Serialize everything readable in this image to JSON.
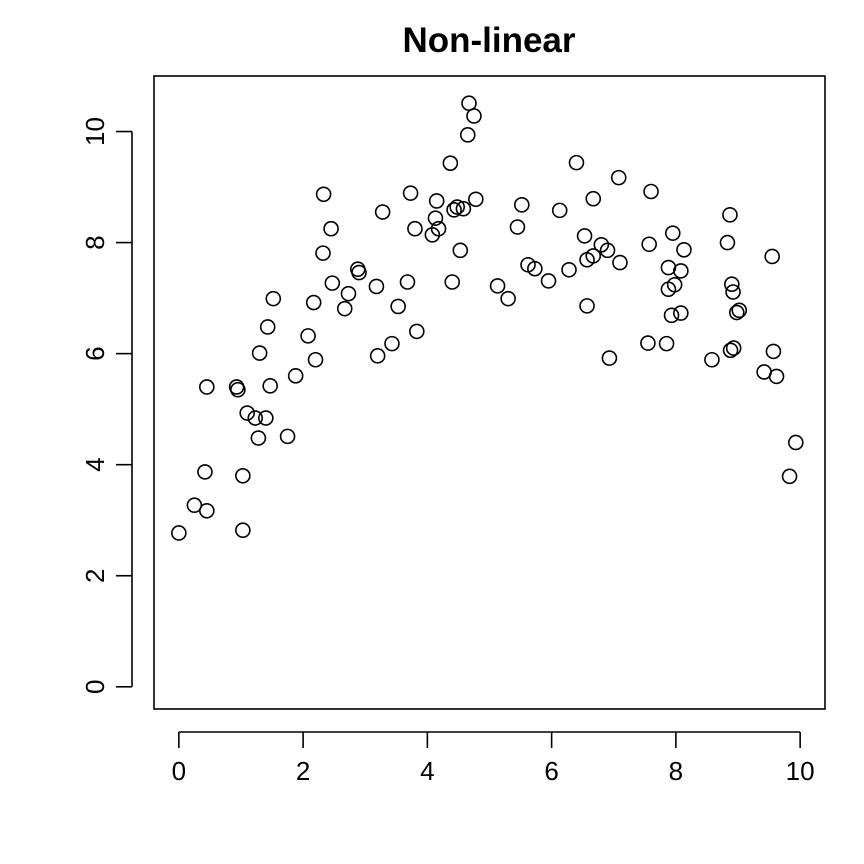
{
  "chart_data": {
    "type": "scatter",
    "title": "Non-linear",
    "xlabel": "",
    "ylabel": "",
    "xlim": [
      -0.4,
      10.4
    ],
    "ylim": [
      -0.4,
      11.0
    ],
    "x_ticks": [
      0,
      2,
      4,
      6,
      8,
      10
    ],
    "y_ticks": [
      0,
      2,
      4,
      6,
      8,
      10
    ],
    "x_tick_labels": [
      "0",
      "2",
      "4",
      "6",
      "8",
      "10"
    ],
    "y_tick_labels": [
      "0",
      "2",
      "4",
      "6",
      "8",
      "10"
    ],
    "grid": false,
    "marker": "open-circle",
    "points": [
      {
        "x": 0.0,
        "y": 2.77
      },
      {
        "x": 0.25,
        "y": 3.27
      },
      {
        "x": 0.42,
        "y": 3.87
      },
      {
        "x": 0.45,
        "y": 3.17
      },
      {
        "x": 0.45,
        "y": 5.4
      },
      {
        "x": 0.93,
        "y": 5.4
      },
      {
        "x": 0.95,
        "y": 5.35
      },
      {
        "x": 1.03,
        "y": 3.8
      },
      {
        "x": 1.03,
        "y": 2.82
      },
      {
        "x": 1.1,
        "y": 4.93
      },
      {
        "x": 1.23,
        "y": 4.84
      },
      {
        "x": 1.28,
        "y": 4.48
      },
      {
        "x": 1.3,
        "y": 6.01
      },
      {
        "x": 1.4,
        "y": 4.84
      },
      {
        "x": 1.43,
        "y": 6.48
      },
      {
        "x": 1.47,
        "y": 5.42
      },
      {
        "x": 1.52,
        "y": 6.99
      },
      {
        "x": 1.75,
        "y": 4.51
      },
      {
        "x": 1.88,
        "y": 5.6
      },
      {
        "x": 2.08,
        "y": 6.32
      },
      {
        "x": 2.17,
        "y": 6.92
      },
      {
        "x": 2.2,
        "y": 5.89
      },
      {
        "x": 2.32,
        "y": 7.81
      },
      {
        "x": 2.33,
        "y": 8.87
      },
      {
        "x": 2.45,
        "y": 8.25
      },
      {
        "x": 2.47,
        "y": 7.27
      },
      {
        "x": 2.67,
        "y": 6.81
      },
      {
        "x": 2.73,
        "y": 7.08
      },
      {
        "x": 2.88,
        "y": 7.52
      },
      {
        "x": 2.9,
        "y": 7.46
      },
      {
        "x": 3.18,
        "y": 7.21
      },
      {
        "x": 3.2,
        "y": 5.96
      },
      {
        "x": 3.28,
        "y": 8.55
      },
      {
        "x": 3.43,
        "y": 6.18
      },
      {
        "x": 3.53,
        "y": 6.85
      },
      {
        "x": 3.68,
        "y": 7.29
      },
      {
        "x": 3.73,
        "y": 8.89
      },
      {
        "x": 3.8,
        "y": 8.25
      },
      {
        "x": 3.83,
        "y": 6.4
      },
      {
        "x": 4.08,
        "y": 8.14
      },
      {
        "x": 4.13,
        "y": 8.44
      },
      {
        "x": 4.15,
        "y": 8.75
      },
      {
        "x": 4.18,
        "y": 8.25
      },
      {
        "x": 4.37,
        "y": 9.43
      },
      {
        "x": 4.4,
        "y": 7.29
      },
      {
        "x": 4.43,
        "y": 8.59
      },
      {
        "x": 4.48,
        "y": 8.64
      },
      {
        "x": 4.53,
        "y": 7.86
      },
      {
        "x": 4.58,
        "y": 8.61
      },
      {
        "x": 4.65,
        "y": 9.94
      },
      {
        "x": 4.67,
        "y": 10.51
      },
      {
        "x": 4.75,
        "y": 10.28
      },
      {
        "x": 4.78,
        "y": 8.78
      },
      {
        "x": 5.13,
        "y": 7.22
      },
      {
        "x": 5.3,
        "y": 6.99
      },
      {
        "x": 5.45,
        "y": 8.28
      },
      {
        "x": 5.52,
        "y": 8.68
      },
      {
        "x": 5.62,
        "y": 7.6
      },
      {
        "x": 5.73,
        "y": 7.53
      },
      {
        "x": 5.95,
        "y": 7.31
      },
      {
        "x": 6.13,
        "y": 8.58
      },
      {
        "x": 6.28,
        "y": 7.51
      },
      {
        "x": 6.4,
        "y": 9.44
      },
      {
        "x": 6.53,
        "y": 8.12
      },
      {
        "x": 6.57,
        "y": 6.86
      },
      {
        "x": 6.57,
        "y": 7.69
      },
      {
        "x": 6.67,
        "y": 8.79
      },
      {
        "x": 6.67,
        "y": 7.76
      },
      {
        "x": 6.8,
        "y": 7.96
      },
      {
        "x": 6.9,
        "y": 7.86
      },
      {
        "x": 6.93,
        "y": 5.92
      },
      {
        "x": 7.08,
        "y": 9.17
      },
      {
        "x": 7.1,
        "y": 7.64
      },
      {
        "x": 7.55,
        "y": 6.19
      },
      {
        "x": 7.57,
        "y": 7.97
      },
      {
        "x": 7.6,
        "y": 8.92
      },
      {
        "x": 7.85,
        "y": 6.18
      },
      {
        "x": 7.88,
        "y": 7.55
      },
      {
        "x": 7.88,
        "y": 7.16
      },
      {
        "x": 7.93,
        "y": 6.69
      },
      {
        "x": 7.95,
        "y": 8.17
      },
      {
        "x": 7.98,
        "y": 7.24
      },
      {
        "x": 8.08,
        "y": 6.73
      },
      {
        "x": 8.08,
        "y": 7.49
      },
      {
        "x": 8.13,
        "y": 7.87
      },
      {
        "x": 8.58,
        "y": 5.89
      },
      {
        "x": 8.83,
        "y": 8.0
      },
      {
        "x": 8.87,
        "y": 8.5
      },
      {
        "x": 8.88,
        "y": 6.06
      },
      {
        "x": 8.9,
        "y": 7.25
      },
      {
        "x": 8.92,
        "y": 7.11
      },
      {
        "x": 8.93,
        "y": 6.1
      },
      {
        "x": 8.98,
        "y": 6.74
      },
      {
        "x": 9.02,
        "y": 6.78
      },
      {
        "x": 9.42,
        "y": 5.67
      },
      {
        "x": 9.55,
        "y": 7.75
      },
      {
        "x": 9.57,
        "y": 6.04
      },
      {
        "x": 9.62,
        "y": 5.59
      },
      {
        "x": 9.83,
        "y": 3.79
      },
      {
        "x": 9.93,
        "y": 4.4
      }
    ]
  }
}
